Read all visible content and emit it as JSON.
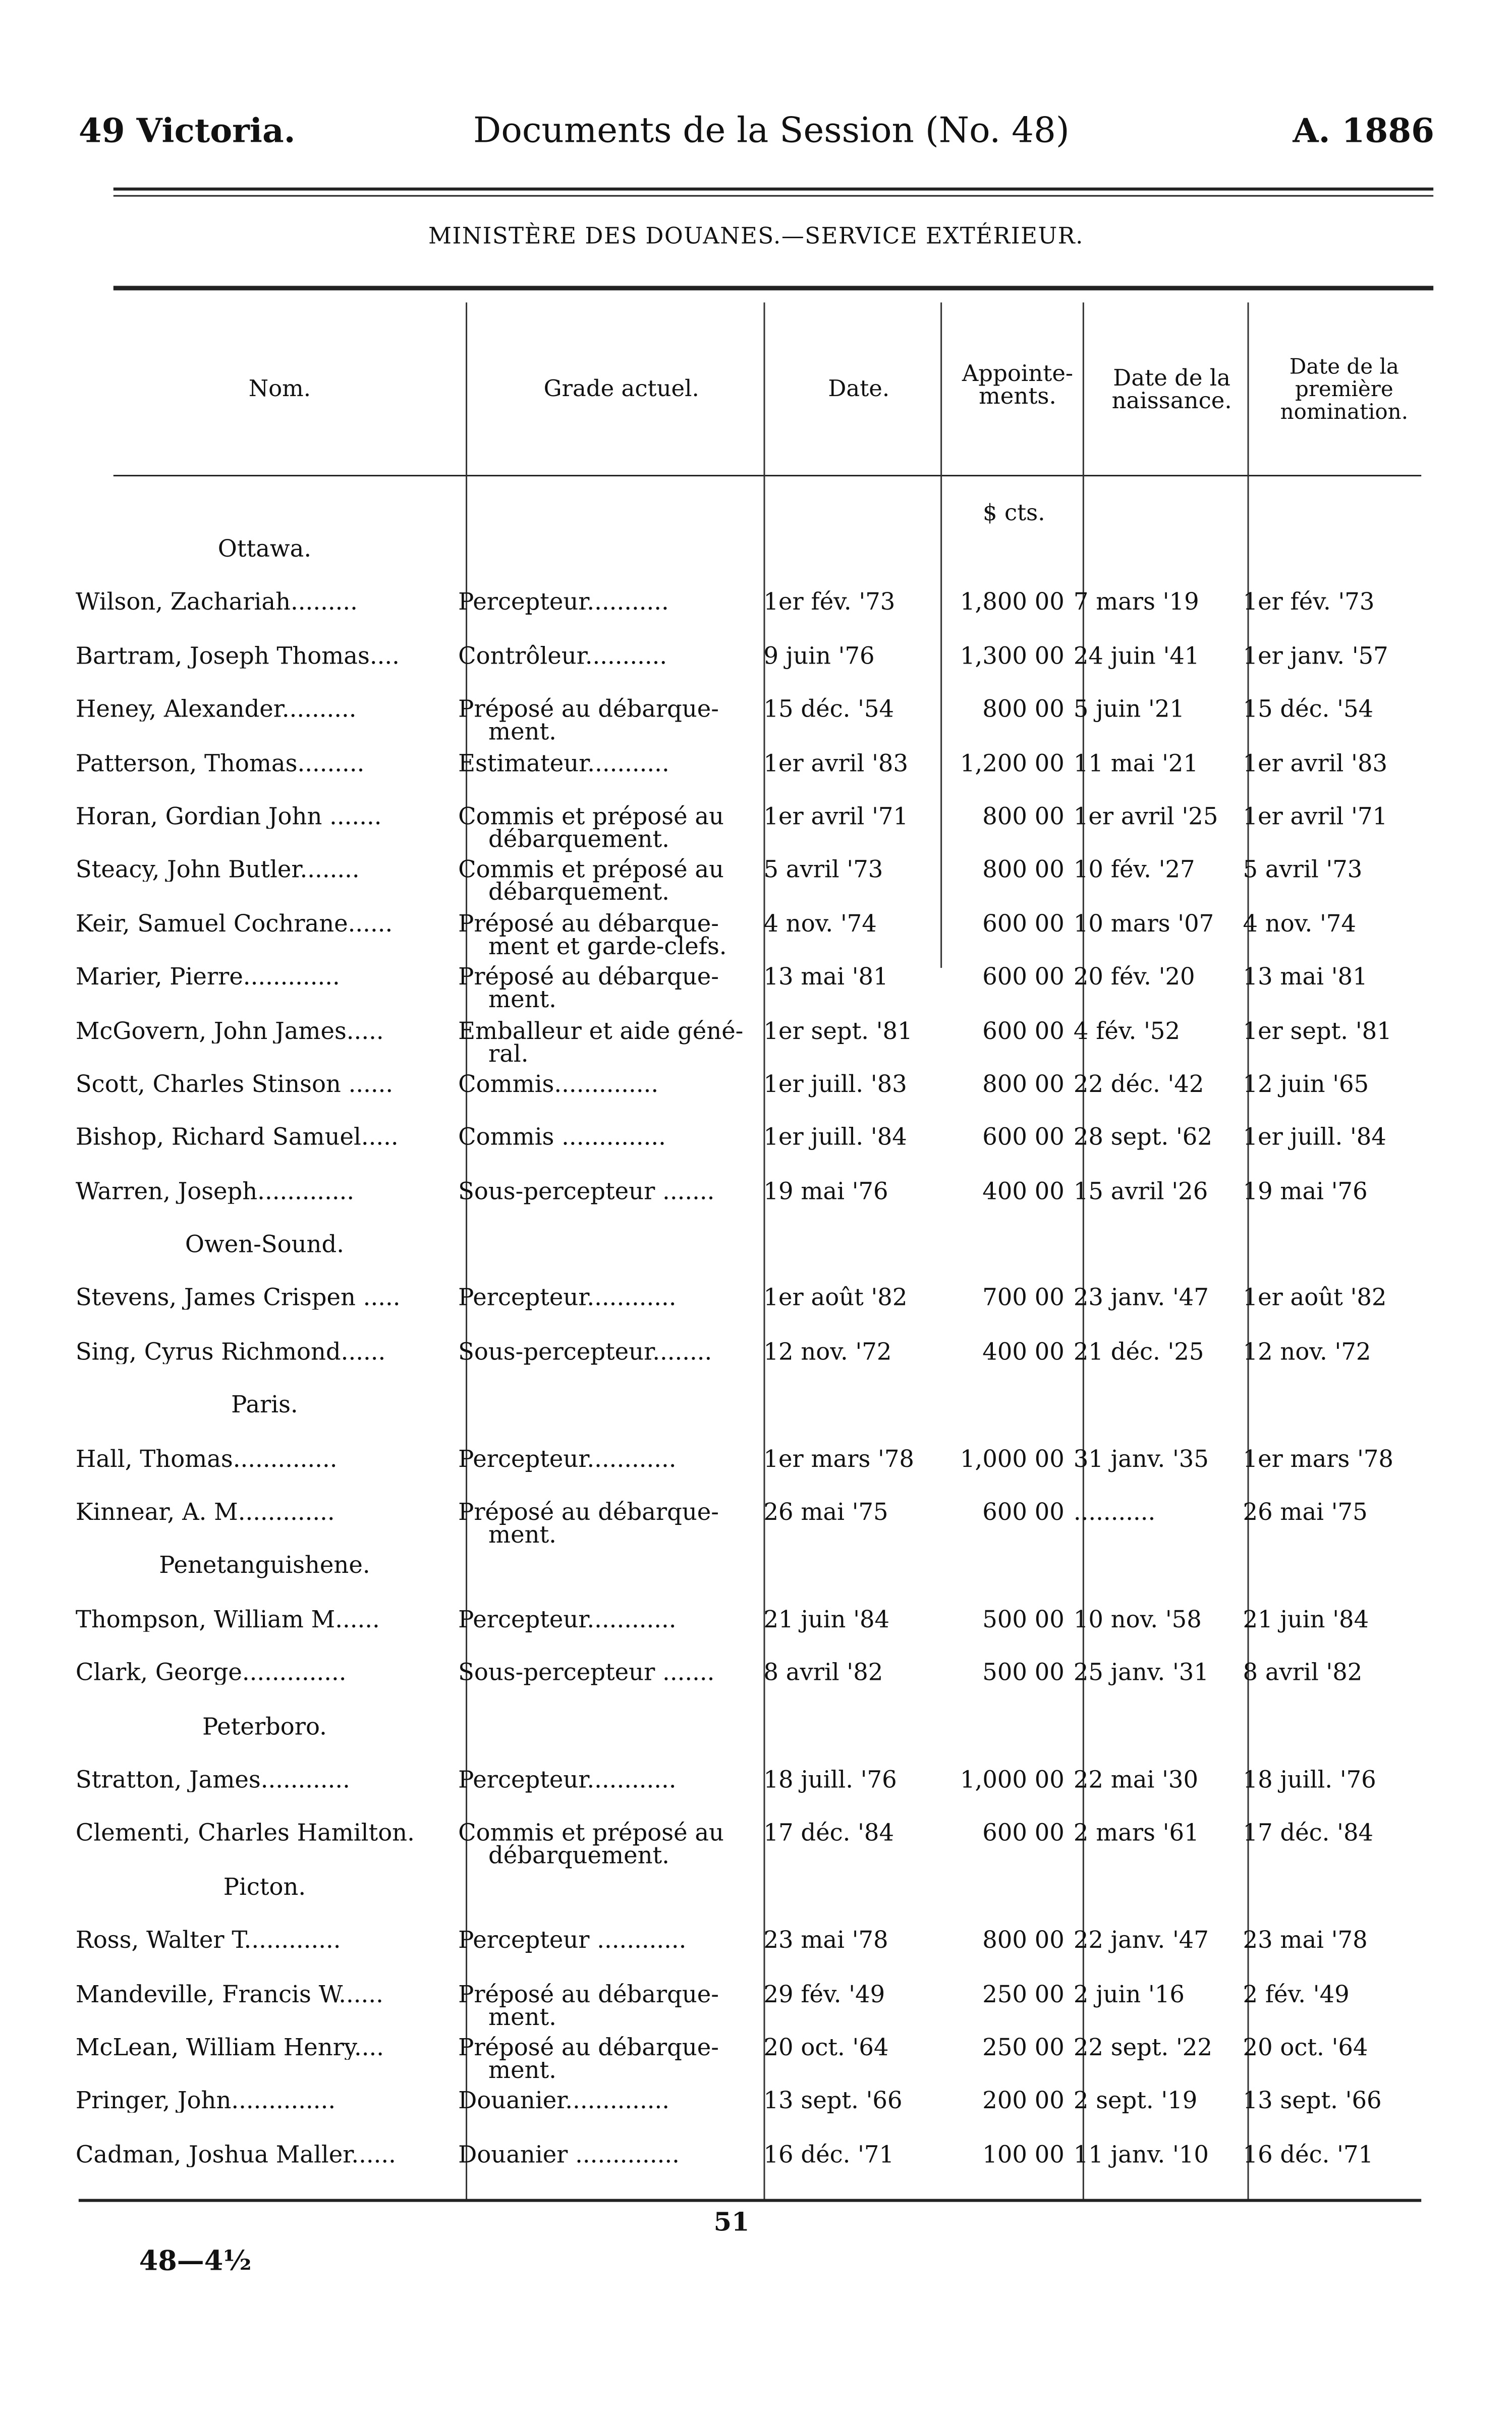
{
  "header": {
    "left": "49 Victoria.",
    "center": "Documents de la Session (No. 48)",
    "right": "A. 1886"
  },
  "subtitle": "MINISTÈRE DES DOUANES.—SERVICE EXTÉRIEUR.",
  "columns": {
    "nom": "Nom.",
    "grade": "Grade actuel.",
    "date": "Date.",
    "appointements": "Appointe-ments.",
    "naissance": "Date de la naissance.",
    "nomination": "Date de la première nomination."
  },
  "currency_units": "$ cts.",
  "sections": [
    {
      "place": "Ottawa.",
      "rows": [
        {
          "nom": "Wilson, Zachariah.........",
          "grade": "Percepteur...........",
          "date": "1er fév. '73",
          "app": "1,800 00",
          "naissance": "7 mars '19",
          "nomination": "1er fév. '73"
        },
        {
          "nom": "Bartram, Joseph Thomas....",
          "grade": "Contrôleur...........",
          "date": "9 juin '76",
          "app": "1,300 00",
          "naissance": "24 juin '41",
          "nomination": "1er janv. '57"
        },
        {
          "nom": "Heney, Alexander..........",
          "grade": "Préposé au débarque-",
          "grade2": "ment.",
          "date": "15 déc. '54",
          "app": "800 00",
          "naissance": "5 juin '21",
          "nomination": "15 déc. '54"
        },
        {
          "nom": "Patterson, Thomas.........",
          "grade": "Estimateur...........",
          "date": "1er avril '83",
          "app": "1,200 00",
          "naissance": "11 mai '21",
          "nomination": "1er avril '83"
        },
        {
          "nom": "Horan, Gordian John .......",
          "grade": "Commis et préposé au",
          "grade2": "débarquement.",
          "date": "1er avril '71",
          "app": "800 00",
          "naissance": "1er avril '25",
          "nomination": "1er avril '71"
        },
        {
          "nom": "Steacy, John Butler........",
          "grade": "Commis et préposé au",
          "grade2": "débarquement.",
          "date": "5 avril '73",
          "app": "800 00",
          "naissance": "10 fév. '27",
          "nomination": "5 avril '73"
        },
        {
          "nom": "Keir, Samuel Cochrane......",
          "grade": "Préposé au débarque-",
          "grade2": "ment et garde-clefs.",
          "date": "4 nov. '74",
          "app": "600 00",
          "naissance": "10 mars '07",
          "nomination": "4 nov. '74"
        },
        {
          "nom": "Marier, Pierre.............",
          "grade": "Préposé au débarque-",
          "grade2": "ment.",
          "date": "13 mai '81",
          "app": "600 00",
          "naissance": "20 fév. '20",
          "nomination": "13 mai '81"
        },
        {
          "nom": "McGovern, John James.....",
          "grade": "Emballeur et aide géné-",
          "grade2": "ral.",
          "date": "1er sept. '81",
          "app": "600 00",
          "naissance": "4 fév. '52",
          "nomination": "1er sept. '81"
        },
        {
          "nom": "Scott, Charles Stinson ......",
          "grade": "Commis..............",
          "date": "1er juill. '83",
          "app": "800 00",
          "naissance": "22 déc. '42",
          "nomination": "12 juin '65"
        },
        {
          "nom": "Bishop, Richard Samuel.....",
          "grade": "Commis ..............",
          "date": "1er juill. '84",
          "app": "600 00",
          "naissance": "28 sept. '62",
          "nomination": "1er juill. '84"
        },
        {
          "nom": "Warren, Joseph.............",
          "grade": "Sous-percepteur .......",
          "date": "19 mai '76",
          "app": "400 00",
          "naissance": "15 avril '26",
          "nomination": "19 mai '76"
        }
      ]
    },
    {
      "place": "Owen-Sound.",
      "rows": [
        {
          "nom": "Stevens, James Crispen .....",
          "grade": "Percepteur............",
          "date": "1er août '82",
          "app": "700 00",
          "naissance": "23 janv. '47",
          "nomination": "1er août '82"
        },
        {
          "nom": "Sing, Cyrus Richmond......",
          "grade": "Sous-percepteur........",
          "date": "12 nov. '72",
          "app": "400 00",
          "naissance": "21 déc. '25",
          "nomination": "12 nov. '72"
        }
      ]
    },
    {
      "place": "Paris.",
      "rows": [
        {
          "nom": "Hall, Thomas..............",
          "grade": "Percepteur............",
          "date": "1er mars '78",
          "app": "1,000 00",
          "naissance": "31 janv. '35",
          "nomination": "1er mars '78"
        },
        {
          "nom": "Kinnear, A. M.............",
          "grade": "Préposé au débarque-",
          "grade2": "ment.",
          "date": "26 mai '75",
          "app": "600 00",
          "naissance": "...........",
          "nomination": "26 mai '75"
        }
      ]
    },
    {
      "place": "Penetanguishene.",
      "rows": [
        {
          "nom": "Thompson, William M......",
          "grade": "Percepteur............",
          "date": "21 juin '84",
          "app": "500 00",
          "naissance": "10 nov. '58",
          "nomination": "21 juin '84"
        },
        {
          "nom": "Clark, George..............",
          "grade": "Sous-percepteur .......",
          "date": "8 avril '82",
          "app": "500 00",
          "naissance": "25 janv. '31",
          "nomination": "8 avril '82"
        }
      ]
    },
    {
      "place": "Peterboro.",
      "rows": [
        {
          "nom": "Stratton, James............",
          "grade": "Percepteur............",
          "date": "18 juill. '76",
          "app": "1,000 00",
          "naissance": "22 mai '30",
          "nomination": "18 juill. '76"
        },
        {
          "nom": "Clementi, Charles Hamilton.",
          "grade": "Commis et préposé au",
          "grade2": "débarquement.",
          "date": "17 déc. '84",
          "app": "600 00",
          "naissance": "2 mars '61",
          "nomination": "17 déc. '84"
        }
      ]
    },
    {
      "place": "Picton.",
      "rows": [
        {
          "nom": "Ross, Walter T.............",
          "grade": "Percepteur ............",
          "date": "23 mai '78",
          "app": "800 00",
          "naissance": "22 janv. '47",
          "nomination": "23 mai '78"
        },
        {
          "nom": "Mandeville, Francis W......",
          "grade": "Préposé au débarque-",
          "grade2": "ment.",
          "date": "29 fév. '49",
          "app": "250 00",
          "naissance": "2 juin '16",
          "nomination": "2 fév. '49"
        },
        {
          "nom": "McLean, William Henry....",
          "grade": "Préposé au débarque-",
          "grade2": "ment.",
          "date": "20 oct. '64",
          "app": "250 00",
          "naissance": "22 sept. '22",
          "nomination": "20 oct. '64"
        },
        {
          "nom": "Pringer, John..............",
          "grade": "Douanier..............",
          "date": "13 sept. '66",
          "app": "200 00",
          "naissance": "2 sept. '19",
          "nomination": "13 sept. '66"
        },
        {
          "nom": "Cadman, Joshua Maller......",
          "grade": "Douanier ..............",
          "date": "16 déc. '71",
          "app": "100 00",
          "naissance": "11 janv. '10",
          "nomination": "16 déc. '71"
        }
      ]
    }
  ],
  "footer": {
    "page_number": "51",
    "signature": "48—4½"
  }
}
